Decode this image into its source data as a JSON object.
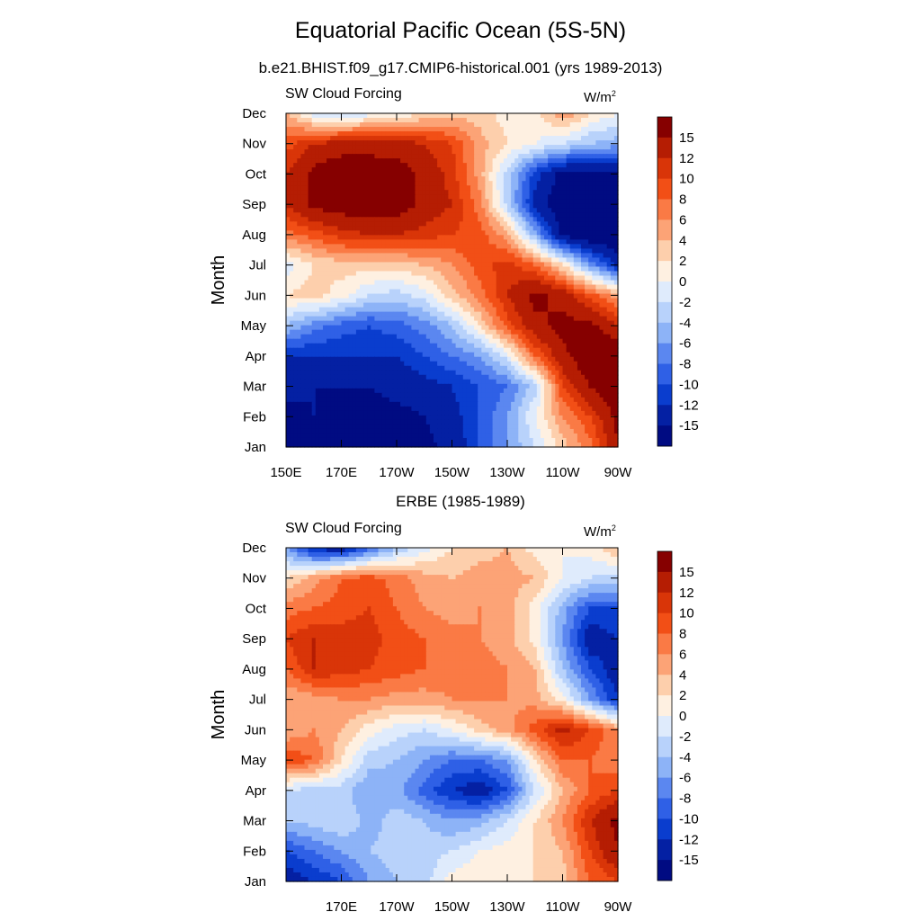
{
  "figure": {
    "title": "Equatorial Pacific Ocean (5S-5N)"
  },
  "colorbar": {
    "labels": [
      "15",
      "12",
      "10",
      "8",
      "6",
      "4",
      "2",
      "0",
      "-2",
      "-4",
      "-6",
      "-8",
      "-10",
      "-12",
      "-15"
    ],
    "colors": [
      "#860000",
      "#b51d03",
      "#d93508",
      "#f24f16",
      "#fa7a45",
      "#fca376",
      "#fdcfac",
      "#fef0e1",
      "#dfebfc",
      "#b8d2fb",
      "#8db3f7",
      "#5b87f0",
      "#2f60e6",
      "#0a3dce",
      "#0420a3",
      "#000b82"
    ]
  },
  "chart_data": [
    {
      "type": "heatmap",
      "title": "b.e21.BHIST.f09_g17.CMIP6-historical.001 (yrs 1989-2013)",
      "left_label": "SW Cloud Forcing",
      "units_label": "W/m",
      "units_superscript": "2",
      "ylabel": "Month",
      "xlabel": "",
      "x_ticks": [
        150,
        170,
        190,
        210,
        230,
        250,
        270
      ],
      "x_tick_labels": [
        "150E",
        "170E",
        "170W",
        "150W",
        "130W",
        "110W",
        "90W"
      ],
      "y_tick_labels": [
        "Jan",
        "Feb",
        "Mar",
        "Apr",
        "May",
        "Jun",
        "Jul",
        "Aug",
        "Sep",
        "Oct",
        "Nov",
        "Dec"
      ],
      "xlim": [
        150,
        270
      ],
      "ylim": [
        1,
        12
      ],
      "x_values": [
        150,
        160,
        170,
        180,
        190,
        200,
        210,
        220,
        230,
        240,
        250,
        260,
        270
      ],
      "y_values": [
        1,
        2,
        3,
        4,
        5,
        6,
        7,
        8,
        9,
        10,
        11,
        12
      ],
      "z": [
        [
          -16,
          -16,
          -16,
          -16,
          -16,
          -16,
          -14,
          -10,
          -6,
          -2,
          3,
          7,
          15
        ],
        [
          -16,
          -15,
          -16,
          -16,
          -16,
          -15,
          -13,
          -10,
          -6,
          0,
          6,
          10,
          16
        ],
        [
          -14,
          -15,
          -15,
          -15,
          -14,
          -13,
          -12,
          -10,
          -8,
          -3,
          10,
          15,
          18
        ],
        [
          -12,
          -12,
          -12,
          -12,
          -12,
          -10,
          -8,
          -6,
          -1,
          8,
          14,
          18,
          18
        ],
        [
          -4,
          -7,
          -9,
          -10,
          -9,
          -7,
          -4,
          2,
          9,
          14,
          16,
          16,
          12
        ],
        [
          2,
          3,
          1,
          -2,
          -3,
          -1,
          3,
          7,
          12,
          16,
          14,
          9,
          5
        ],
        [
          -1,
          2,
          3,
          3,
          3,
          4,
          6,
          9,
          11,
          8,
          2,
          -6,
          -13
        ],
        [
          7,
          9,
          11,
          12,
          12,
          11,
          10,
          9,
          5,
          -5,
          -16,
          -18,
          -18
        ],
        [
          12,
          16,
          17,
          17,
          17,
          14,
          12,
          7,
          -3,
          -13,
          -18,
          -18,
          -18
        ],
        [
          12,
          16,
          18,
          18,
          17,
          14,
          11,
          5,
          -3,
          -11,
          -16,
          -16,
          -16
        ],
        [
          9,
          12,
          13,
          13,
          13,
          12,
          10,
          5,
          2,
          0,
          -2,
          -4,
          -5
        ],
        [
          4,
          -1,
          -2,
          -1,
          0,
          2,
          3,
          3,
          1,
          1,
          6,
          2,
          0
        ]
      ]
    },
    {
      "type": "heatmap",
      "title": "ERBE (1985-1989)",
      "left_label": "SW Cloud Forcing",
      "units_label": "W/m",
      "units_superscript": "2",
      "ylabel": "Month",
      "xlabel": "",
      "x_ticks": [
        170,
        190,
        210,
        230,
        250,
        270
      ],
      "x_tick_labels": [
        "170E",
        "170W",
        "150W",
        "130W",
        "110W",
        "90W"
      ],
      "y_tick_labels": [
        "Jan",
        "Feb",
        "Mar",
        "Apr",
        "May",
        "Jun",
        "Jul",
        "Aug",
        "Sep",
        "Oct",
        "Nov",
        "Dec"
      ],
      "xlim": [
        150,
        270
      ],
      "ylim": [
        1,
        12
      ],
      "x_values": [
        150,
        160,
        170,
        180,
        190,
        200,
        210,
        220,
        230,
        240,
        250,
        260,
        270
      ],
      "y_values": [
        1,
        2,
        3,
        4,
        5,
        6,
        7,
        8,
        9,
        10,
        11,
        12
      ],
      "z": [
        [
          -14,
          -12,
          -10,
          -6,
          -4,
          -3,
          1,
          2,
          2,
          2,
          3,
          8,
          10
        ],
        [
          -10,
          -8,
          -6,
          -4,
          -3,
          -3,
          -2,
          0,
          1,
          2,
          4,
          10,
          15
        ],
        [
          -4,
          -3,
          -2,
          -5,
          -3,
          -4,
          -6,
          -5,
          -2,
          2,
          6,
          12,
          16
        ],
        [
          -2,
          -3,
          -3,
          -6,
          -5,
          -9,
          -12,
          -14,
          -10,
          -2,
          4,
          8,
          10
        ],
        [
          10,
          8,
          2,
          -3,
          -4,
          -6,
          -8,
          -8,
          -6,
          2,
          8,
          8,
          6
        ],
        [
          4,
          6,
          4,
          1,
          -1,
          -2,
          0,
          3,
          5,
          9,
          13,
          10,
          6
        ],
        [
          4,
          5,
          6,
          6,
          5,
          5,
          6,
          6,
          6,
          5,
          1,
          -6,
          -12
        ],
        [
          8,
          12,
          11,
          10,
          9,
          8,
          7,
          7,
          6,
          4,
          -4,
          -10,
          -14
        ],
        [
          10,
          12,
          11,
          11,
          9,
          8,
          7,
          6,
          5,
          1,
          -6,
          -14,
          -12
        ],
        [
          7,
          8,
          9,
          10,
          8,
          6,
          5,
          6,
          5,
          1,
          -5,
          -10,
          -10
        ],
        [
          2,
          5,
          8,
          9,
          7,
          5,
          4,
          5,
          5,
          4,
          0,
          -2,
          -3
        ],
        [
          -6,
          -13,
          -14,
          -9,
          -4,
          -1,
          2,
          3,
          4,
          1,
          0,
          1,
          4
        ]
      ]
    }
  ]
}
